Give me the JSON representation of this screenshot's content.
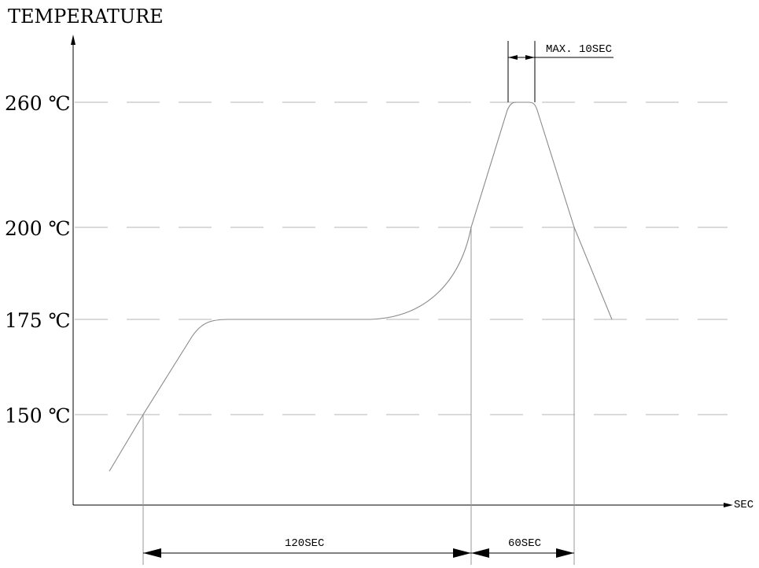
{
  "chart_data": {
    "type": "line",
    "title": "",
    "ylabel": "TEMPERATURE",
    "xlabel": "SEC",
    "y_ticks": [
      {
        "value": 260,
        "label": "260 ℃"
      },
      {
        "value": 200,
        "label": "200 ℃"
      },
      {
        "value": 175,
        "label": "175 ℃"
      },
      {
        "value": 150,
        "label": "150 ℃"
      }
    ],
    "grid": "dashed horizontal at each tick",
    "series": [
      {
        "x": [
          -20,
          0,
          30,
          40,
          60,
          80,
          120,
          140,
          150,
          160,
          163,
          170,
          180
        ],
        "y": [
          133,
          150,
          168,
          174,
          175,
          175,
          175,
          182,
          200,
          258,
          260,
          260,
          200
        ]
      }
    ],
    "series_end": {
      "x": 200,
      "y": 175
    },
    "annotations": [
      {
        "label": "120SEC",
        "from_x": 0,
        "to_x": 150
      },
      {
        "label": "60SEC",
        "from_x": 150,
        "to_x": 180
      },
      {
        "label": "MAX. 10SEC",
        "from_x": 163,
        "to_x": 170
      }
    ]
  }
}
